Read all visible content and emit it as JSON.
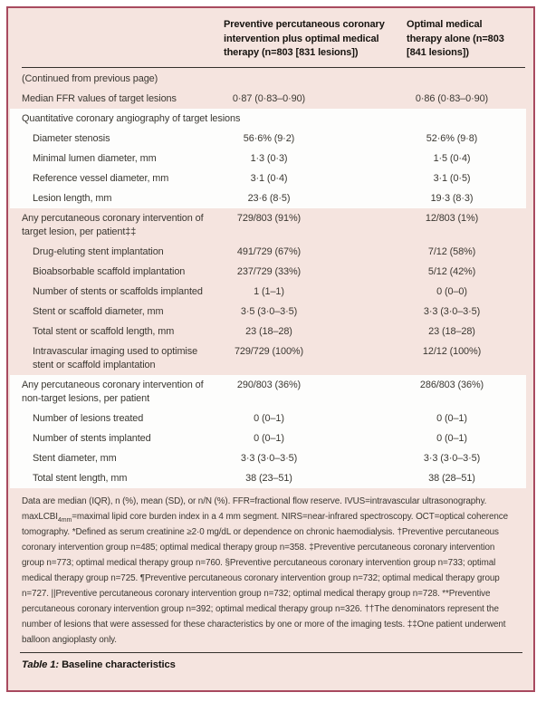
{
  "colors": {
    "panel_border": "#a84a5f",
    "panel_background": "#f5e4df",
    "band_white": "#fdfdfc",
    "rule": "#33302c",
    "text": "#3a3731"
  },
  "table": {
    "header": {
      "col1": "Preventive percutaneous coronary intervention plus optimal medical therapy (n=803 [831 lesions])",
      "col2": "Optimal medical therapy alone (n=803 [841 lesions])"
    },
    "rows": [
      {
        "type": "continued",
        "band": "pink",
        "indent": 0,
        "label": "(Continued from previous page)",
        "col1": "",
        "col2": ""
      },
      {
        "type": "data",
        "band": "pink",
        "indent": 0,
        "label": "Median FFR values of target lesions",
        "col1": "0·87 (0·83–0·90)",
        "col2": "0·86 (0·83–0·90)"
      },
      {
        "type": "section",
        "band": "white",
        "indent": 0,
        "label": "Quantitative coronary angiography of target lesions",
        "col1": "",
        "col2": ""
      },
      {
        "type": "data",
        "band": "white",
        "indent": 1,
        "label": "Diameter stenosis",
        "col1": "56·6% (9·2)",
        "col2": "52·6% (9·8)"
      },
      {
        "type": "data",
        "band": "white",
        "indent": 1,
        "label": "Minimal lumen diameter, mm",
        "col1": "1·3 (0·3)",
        "col2": "1·5 (0·4)"
      },
      {
        "type": "data",
        "band": "white",
        "indent": 1,
        "label": "Reference vessel diameter, mm",
        "col1": "3·1 (0·4)",
        "col2": "3·1 (0·5)"
      },
      {
        "type": "data",
        "band": "white",
        "indent": 1,
        "label": "Lesion length, mm",
        "col1": "23·6 (8·5)",
        "col2": "19·3 (8·3)"
      },
      {
        "type": "data",
        "band": "pink",
        "indent": 0,
        "label": "Any percutaneous coronary intervention of target lesion, per patient‡‡",
        "col1": "729/803 (91%)",
        "col2": "12/803 (1%)"
      },
      {
        "type": "data",
        "band": "pink",
        "indent": 1,
        "label": "Drug-eluting stent implantation",
        "col1": "491/729 (67%)",
        "col2": "7/12 (58%)"
      },
      {
        "type": "data",
        "band": "pink",
        "indent": 1,
        "label": "Bioabsorbable scaffold implantation",
        "col1": "237/729 (33%)",
        "col2": "5/12 (42%)"
      },
      {
        "type": "data",
        "band": "pink",
        "indent": 1,
        "label": "Number of stents or scaffolds implanted",
        "col1": "1 (1–1)",
        "col2": "0 (0–0)"
      },
      {
        "type": "data",
        "band": "pink",
        "indent": 1,
        "label": "Stent or scaffold diameter, mm",
        "col1": "3·5 (3·0–3·5)",
        "col2": "3·3 (3·0–3·5)"
      },
      {
        "type": "data",
        "band": "pink",
        "indent": 1,
        "label": "Total stent or scaffold length, mm",
        "col1": "23 (18–28)",
        "col2": "23 (18–28)"
      },
      {
        "type": "data",
        "band": "pink",
        "indent": 1,
        "label": "Intravascular imaging used to optimise stent or scaffold implantation",
        "col1": "729/729 (100%)",
        "col2": "12/12 (100%)"
      },
      {
        "type": "data",
        "band": "white",
        "indent": 0,
        "label": "Any percutaneous coronary intervention of non-target lesions, per patient",
        "col1": "290/803 (36%)",
        "col2": "286/803 (36%)"
      },
      {
        "type": "data",
        "band": "white",
        "indent": 1,
        "label": "Number of lesions treated",
        "col1": "0 (0–1)",
        "col2": "0 (0–1)"
      },
      {
        "type": "data",
        "band": "white",
        "indent": 1,
        "label": "Number of stents implanted",
        "col1": "0 (0–1)",
        "col2": "0 (0–1)"
      },
      {
        "type": "data",
        "band": "white",
        "indent": 1,
        "label": "Stent diameter, mm",
        "col1": "3·3 (3·0–3·5)",
        "col2": "3·3 (3·0–3·5)"
      },
      {
        "type": "data",
        "band": "white",
        "indent": 1,
        "label": "Total stent length, mm",
        "col1": "38 (23–51)",
        "col2": "38 (28–51)"
      }
    ]
  },
  "footnote": {
    "part1": "Data are median (IQR), n (%), mean (SD), or n/N (%). FFR=fractional flow reserve. IVUS=intravascular ultrasonography. maxLCBI",
    "sub": "4mm",
    "part2": "=maximal lipid core burden index in a 4 mm segment. NIRS=near-infrared spectroscopy. OCT=optical coherence tomography. *Defined as serum creatinine ≥2·0 mg/dL or dependence on chronic haemodialysis. †Preventive percutaneous coronary intervention group n=485; optimal medical therapy group n=358. ‡Preventive percutaneous coronary intervention group n=773; optimal medical therapy group n=760. §Preventive percutaneous coronary intervention group n=733; optimal medical therapy group n=725. ¶Preventive percutaneous coronary intervention group n=732; optimal medical therapy group n=727. ||Preventive percutaneous coronary intervention group n=732; optimal medical therapy group n=728. **Preventive percutaneous coronary intervention group n=392; optimal medical therapy group n=326. ††The denominators represent the number of lesions that were assessed for these characteristics by one or more of the imaging tests. ‡‡One patient underwent balloon angioplasty only."
  },
  "caption": {
    "label": "Table 1:",
    "title": "Baseline characteristics"
  }
}
